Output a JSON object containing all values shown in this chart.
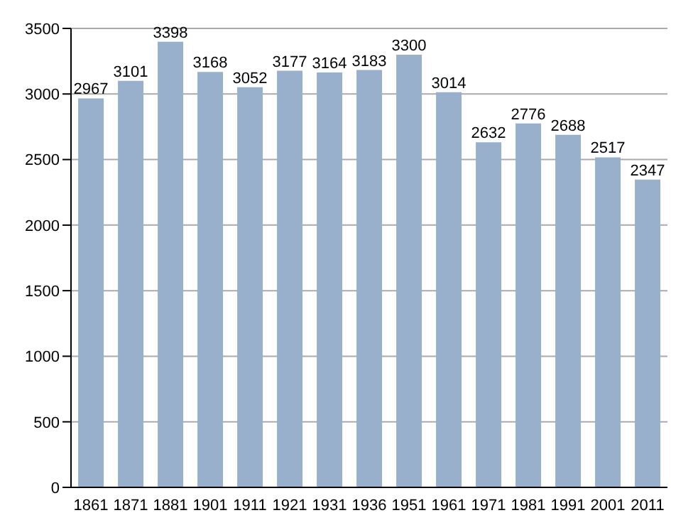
{
  "chart_data": {
    "type": "bar",
    "categories": [
      "1861",
      "1871",
      "1881",
      "1901",
      "1911",
      "1921",
      "1931",
      "1936",
      "1951",
      "1961",
      "1971",
      "1981",
      "1991",
      "2001",
      "2011"
    ],
    "values": [
      2967,
      3101,
      3398,
      3168,
      3052,
      3177,
      3164,
      3183,
      3300,
      3014,
      2632,
      2776,
      2688,
      2517,
      2347
    ],
    "color": "#98b0cc",
    "ylim": [
      0,
      3500
    ],
    "yticks": [
      0,
      500,
      1000,
      1500,
      2000,
      2500,
      3000,
      3500
    ],
    "grid": "y",
    "data_labels": true
  }
}
